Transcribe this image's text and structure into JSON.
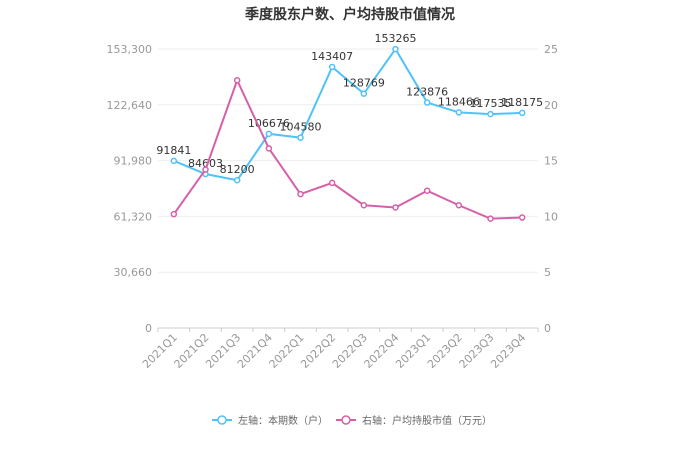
{
  "chart_data": {
    "type": "line",
    "title": "季度股东户数、户均持股市值情况",
    "categories": [
      "2021Q1",
      "2021Q2",
      "2021Q3",
      "2021Q4",
      "2022Q1",
      "2022Q2",
      "2022Q3",
      "2022Q4",
      "2023Q1",
      "2023Q2",
      "2023Q3",
      "2023Q4"
    ],
    "series": [
      {
        "name": "左轴：本期数（户）",
        "axis": "left",
        "color": "#4fc3f7",
        "values": [
          91841,
          84603,
          81200,
          106676,
          104580,
          143407,
          128769,
          153265,
          123876,
          118466,
          117535,
          118175
        ],
        "labels": [
          "91841",
          "84603",
          "81200",
          "106676",
          "104580",
          "143407",
          "128769",
          "153265",
          "123876",
          "118466",
          "117535",
          "118175"
        ]
      },
      {
        "name": "右轴：户均持股市值（万元）",
        "axis": "right",
        "color": "#d660a8",
        "values": [
          10.2,
          14.2,
          22.2,
          16.1,
          12.0,
          13.0,
          11.0,
          10.8,
          12.3,
          11.0,
          9.8,
          9.9
        ]
      }
    ],
    "left_axis": {
      "ylim": [
        0,
        153300
      ],
      "ticks": [
        0,
        30660,
        61320,
        91980,
        122640,
        153300
      ],
      "tick_labels": [
        "0",
        "30,660",
        "61,320",
        "91,980",
        "122,640",
        "153,300"
      ]
    },
    "right_axis": {
      "ylim": [
        0,
        25
      ],
      "ticks": [
        0,
        5,
        10,
        15,
        20,
        25
      ],
      "tick_labels": [
        "0",
        "5",
        "10",
        "15",
        "20",
        "25"
      ]
    },
    "grid": true,
    "legend_position": "bottom"
  }
}
